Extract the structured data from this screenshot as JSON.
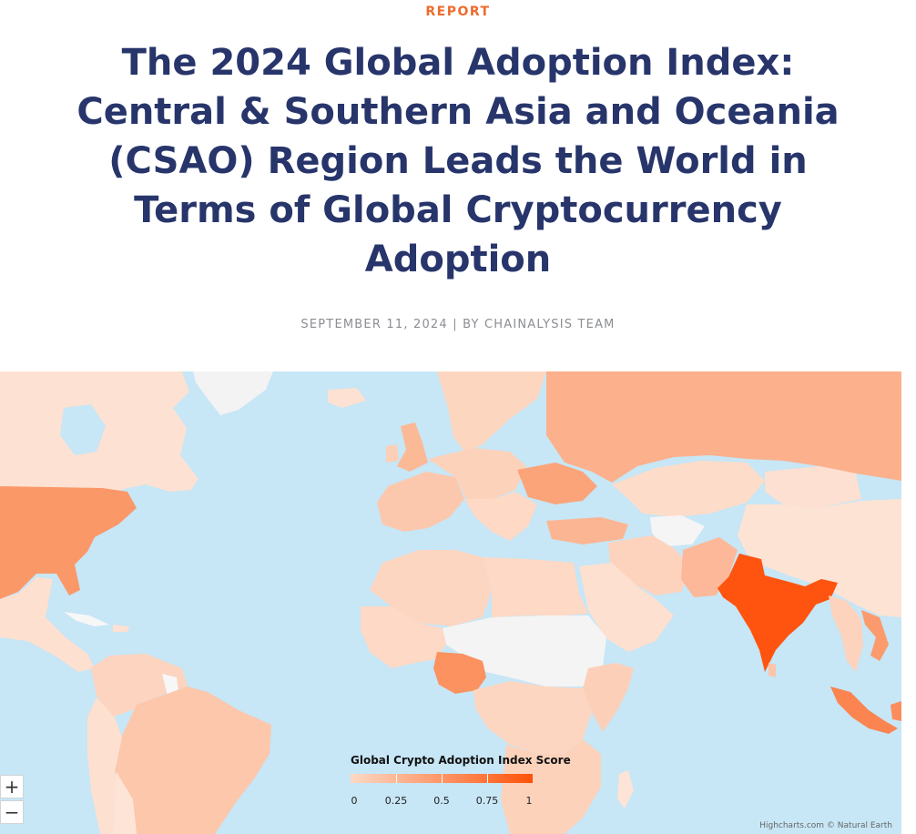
{
  "header": {
    "kicker": "REPORT",
    "title": "The 2024 Global Adoption Index: Central & Southern Asia and Oceania (CSAO) Region Leads the World in Terms of Global Cryptocurrency Adoption",
    "byline": "SEPTEMBER 11, 2024 | BY CHAINALYSIS TEAM"
  },
  "map": {
    "legend": {
      "title": "Global Crypto Adoption Index Score",
      "ticks": [
        "0",
        "0.25",
        "0.5",
        "0.75",
        "1"
      ],
      "color_low": "#fcd9c5",
      "color_high": "#ff5209",
      "no_data_color": "#f3f3f3"
    },
    "ocean_color": "#c7e6f6",
    "zoom_in_label": "+",
    "zoom_out_label": "−",
    "credits": "Highcharts.com © Natural Earth"
  }
}
